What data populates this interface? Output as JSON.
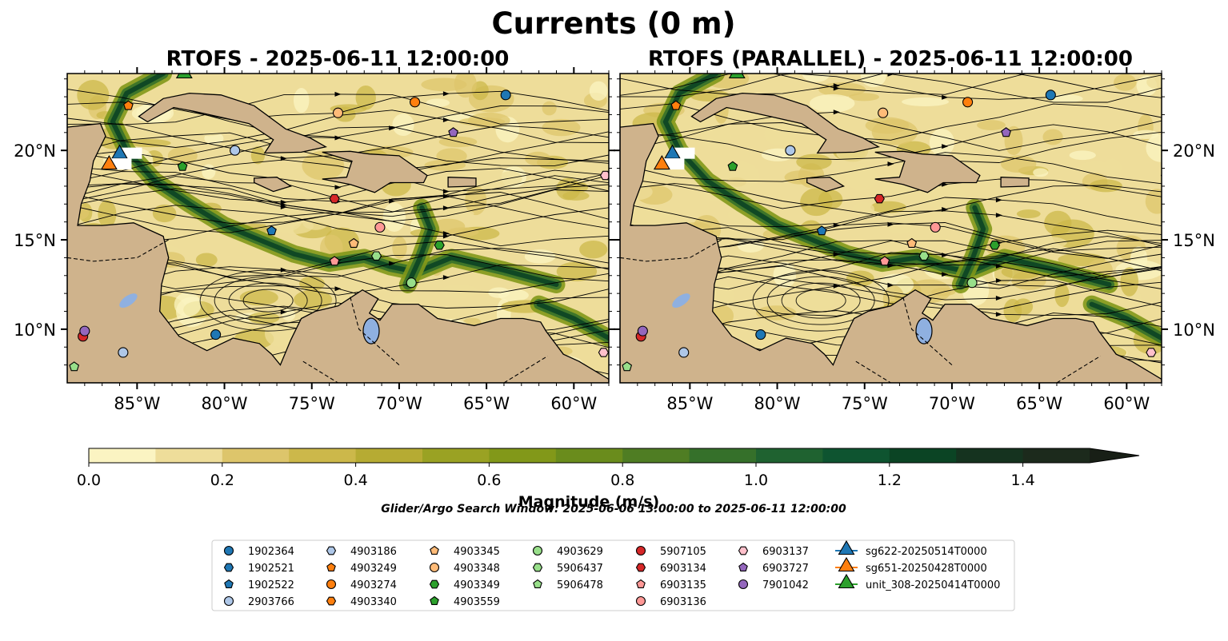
{
  "figure": {
    "title": "Currents (0 m)",
    "search_window": "Glider/Argo Search Window: 2025-06-06 13:00:00 to 2025-06-11 12:00:00"
  },
  "colors": {
    "land": "#cfb38c",
    "lake": "#8fb0e0",
    "river": "#9fb7d6",
    "colormap": [
      "#fbf4c2",
      "#eedd9a",
      "#ddc56b",
      "#ccb84a",
      "#b6ab33",
      "#9aa223",
      "#829819",
      "#6a8c1c",
      "#4f7d23",
      "#35702a",
      "#1f6230",
      "#0e5430",
      "#0b4424",
      "#15331f",
      "#1c2a1c",
      "#181f16"
    ]
  },
  "chart_data": [
    {
      "type": "heatmap",
      "title": "RTOFS - 2025-06-11 12:00:00",
      "xlabel": "",
      "ylabel": "",
      "xlim": [
        -89,
        -58
      ],
      "ylim": [
        7,
        24.3
      ],
      "x_ticks": [
        "85°W",
        "80°W",
        "75°W",
        "70°W",
        "65°W",
        "60°W"
      ],
      "y_ticks_left": [
        "20°N",
        "15°N",
        "10°N"
      ],
      "grid": false,
      "overlay": "streamlines",
      "argo_floats": [
        {
          "id": "1902364",
          "lon": -63.9,
          "lat": 23.1
        },
        {
          "id": "1902522",
          "lon": -77.3,
          "lat": 15.5
        },
        {
          "id": "2903766",
          "lon": -79.4,
          "lat": 20.0
        },
        {
          "id": "2903766b",
          "lon": -85.8,
          "lat": 8.7
        },
        {
          "id": "4903249",
          "lon": -85.5,
          "lat": 22.5
        },
        {
          "id": "4903274",
          "lon": -69.1,
          "lat": 22.7
        },
        {
          "id": "4903345",
          "lon": -72.6,
          "lat": 14.8
        },
        {
          "id": "4903348",
          "lon": -73.5,
          "lat": 22.1
        },
        {
          "id": "4903559",
          "lon": -82.4,
          "lat": 19.1
        },
        {
          "id": "4903349",
          "lon": -67.7,
          "lat": 14.7
        },
        {
          "id": "4903629",
          "lon": -69.3,
          "lat": 12.6
        },
        {
          "id": "5906437",
          "lon": -71.3,
          "lat": 14.1
        },
        {
          "id": "5906478",
          "lon": -88.6,
          "lat": 7.9
        },
        {
          "id": "5907105",
          "lon": -88.1,
          "lat": 9.6
        },
        {
          "id": "6903134",
          "lon": -73.7,
          "lat": 17.3
        },
        {
          "id": "6903135",
          "lon": -73.7,
          "lat": 13.8
        },
        {
          "id": "6903136",
          "lon": -71.1,
          "lat": 15.7
        },
        {
          "id": "6903137",
          "lon": -58.2,
          "lat": 18.6
        },
        {
          "id": "6903137b",
          "lon": -58.3,
          "lat": 8.7
        },
        {
          "id": "6903727",
          "lon": -66.9,
          "lat": 21.0
        },
        {
          "id": "7901042",
          "lon": -88.0,
          "lat": 9.9
        },
        {
          "id": "1902364b",
          "lon": -80.5,
          "lat": 9.7
        }
      ],
      "gliders": [
        {
          "id": "sg622-20250514T0000",
          "lon": -86.0,
          "lat": 19.8
        },
        {
          "id": "sg651-20250428T0000",
          "lon": -86.6,
          "lat": 19.2
        },
        {
          "id": "unit_308-20250414T0000",
          "lon": -82.3,
          "lat": 24.3
        }
      ]
    },
    {
      "type": "heatmap",
      "title": "RTOFS (PARALLEL) - 2025-06-11 12:00:00",
      "xlabel": "",
      "ylabel": "",
      "xlim": [
        -89,
        -58
      ],
      "ylim": [
        7,
        24.3
      ],
      "x_ticks": [
        "85°W",
        "80°W",
        "75°W",
        "70°W",
        "65°W",
        "60°W"
      ],
      "y_ticks_right": [
        "20°N",
        "15°N",
        "10°N"
      ],
      "grid": false,
      "overlay": "streamlines"
    },
    {
      "type": "colorbar",
      "label": "Magnitude (m/s)",
      "range": [
        0.0,
        1.5
      ],
      "ticks": [
        "0.0",
        "0.2",
        "0.4",
        "0.6",
        "0.8",
        "1.0",
        "1.2",
        "1.4"
      ],
      "step": 0.1,
      "extend": "max"
    }
  ],
  "legend": {
    "entries": [
      {
        "label": "1902364",
        "marker": "circle",
        "color": "#1f77b4"
      },
      {
        "label": "1902521",
        "marker": "hexagon",
        "color": "#1f77b4"
      },
      {
        "label": "1902522",
        "marker": "pentagon",
        "color": "#1f77b4"
      },
      {
        "label": "2903766",
        "marker": "circle",
        "color": "#aec7e8"
      },
      {
        "label": "4903186",
        "marker": "hexagon",
        "color": "#aec7e8"
      },
      {
        "label": "4903249",
        "marker": "pentagon",
        "color": "#ff7f0e"
      },
      {
        "label": "4903274",
        "marker": "circle",
        "color": "#ff7f0e"
      },
      {
        "label": "4903340",
        "marker": "hexagon",
        "color": "#ff7f0e"
      },
      {
        "label": "4903345",
        "marker": "pentagon",
        "color": "#ffbb78"
      },
      {
        "label": "4903348",
        "marker": "circle",
        "color": "#ffbb78"
      },
      {
        "label": "4903349",
        "marker": "hexagon",
        "color": "#2ca02c"
      },
      {
        "label": "4903559",
        "marker": "pentagon",
        "color": "#2ca02c"
      },
      {
        "label": "4903629",
        "marker": "circle",
        "color": "#98df8a"
      },
      {
        "label": "5906437",
        "marker": "hexagon",
        "color": "#98df8a"
      },
      {
        "label": "5906478",
        "marker": "pentagon",
        "color": "#98df8a"
      },
      {
        "label": "5907105",
        "marker": "circle",
        "color": "#d62728"
      },
      {
        "label": "6903134",
        "marker": "hexagon",
        "color": "#d62728"
      },
      {
        "label": "6903135",
        "marker": "pentagon",
        "color": "#ff9896"
      },
      {
        "label": "6903136",
        "marker": "circle",
        "color": "#ff9896"
      },
      {
        "label": "6903137",
        "marker": "hexagon",
        "color": "#ffc0cb"
      },
      {
        "label": "6903727",
        "marker": "pentagon",
        "color": "#9467bd"
      },
      {
        "label": "7901042",
        "marker": "circle",
        "color": "#9467bd"
      },
      {
        "label": "sg622-20250514T0000",
        "marker": "triangle",
        "color": "#1f77b4"
      },
      {
        "label": "sg651-20250428T0000",
        "marker": "triangle",
        "color": "#ff7f0e"
      },
      {
        "label": "unit_308-20250414T0000",
        "marker": "triangle",
        "color": "#2ca02c"
      }
    ]
  }
}
